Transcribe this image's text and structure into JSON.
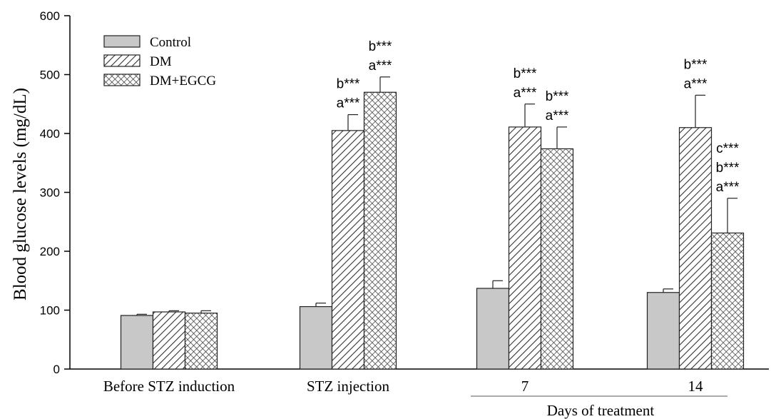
{
  "chart_data": {
    "type": "bar",
    "ylabel": "Blood glucose levels (mg/dL)",
    "xlabel": "Days of  treatment",
    "ylim": [
      0,
      600
    ],
    "yticks": [
      0,
      100,
      200,
      300,
      400,
      500,
      600
    ],
    "grid": false,
    "legend_position": "top-left",
    "categories": [
      "Before STZ induction",
      "STZ injection",
      "7",
      "14"
    ],
    "series": [
      {
        "name": "Control",
        "pattern": "solid",
        "color": "#c8c8c8",
        "values": [
          91,
          106,
          137,
          130
        ],
        "errors": [
          2,
          6,
          13,
          6
        ]
      },
      {
        "name": "DM",
        "pattern": "diagonal-hatch",
        "color": "#ffffff",
        "values": [
          97,
          405,
          411,
          410
        ],
        "errors": [
          2,
          27,
          39,
          55
        ]
      },
      {
        "name": "DM+EGCG",
        "pattern": "crosshatch",
        "color": "#ffffff",
        "values": [
          95,
          470,
          374,
          231
        ],
        "errors": [
          4,
          26,
          37,
          59
        ]
      }
    ],
    "annotations": [
      {
        "category": 1,
        "series": 1,
        "lines": [
          "b***",
          "a***"
        ]
      },
      {
        "category": 1,
        "series": 2,
        "lines": [
          "b***",
          "a***"
        ]
      },
      {
        "category": 2,
        "series": 1,
        "lines": [
          "b***",
          "a***"
        ]
      },
      {
        "category": 2,
        "series": 2,
        "lines": [
          "b***",
          "a***"
        ]
      },
      {
        "category": 3,
        "series": 1,
        "lines": [
          "b***",
          "a***"
        ]
      },
      {
        "category": 3,
        "series": 2,
        "lines": [
          "c***",
          "b***",
          "a***"
        ]
      }
    ]
  }
}
